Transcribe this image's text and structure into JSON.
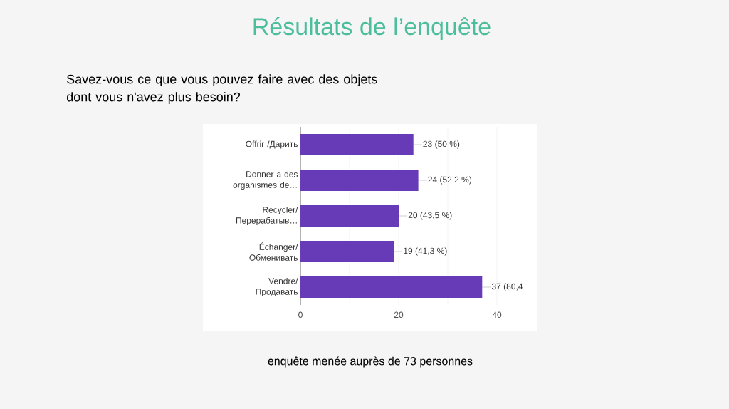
{
  "chart_data": {
    "type": "bar",
    "orientation": "horizontal",
    "title": "Résultats de l’enquête",
    "subtitle": "Savez-vous ce que vous pouvez faire avec des objets dont vous n'avez plus besoin?",
    "annotations": [
      "enquête menée auprès de 73 personnes"
    ],
    "categories": [
      "Offrir /Дарить",
      "Donner a des organismes de…",
      "Recycler/ Перерабатыв…",
      "Échanger/ Обменивать",
      "Vendre/ Продавать"
    ],
    "values": [
      23,
      24,
      20,
      19,
      37
    ],
    "value_labels": [
      "23 (50 %)",
      "24 (52,2 %)",
      "20 (43,5 %)",
      "19 (41,3 %)",
      "37 (80,4"
    ],
    "color": "#673ab7",
    "xlim": [
      0,
      40
    ],
    "xticks": [
      0,
      {
        "value": 10,
        "label": null
      },
      20,
      {
        "value": 30,
        "label": null
      },
      40
    ],
    "grid": "x"
  }
}
